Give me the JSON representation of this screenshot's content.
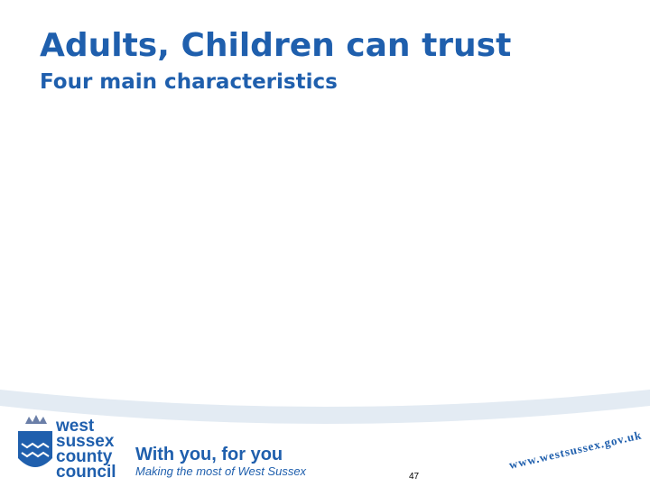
{
  "header": {
    "title": "Adults, Children can trust",
    "subtitle": "Four main characteristics"
  },
  "footer": {
    "logo_text": [
      "west",
      "sussex",
      "county",
      "council"
    ],
    "slogan": "With you, for you",
    "tagline": "Making the most of West Sussex",
    "url": "www.westsussex.gov.uk",
    "page_number": "47"
  }
}
